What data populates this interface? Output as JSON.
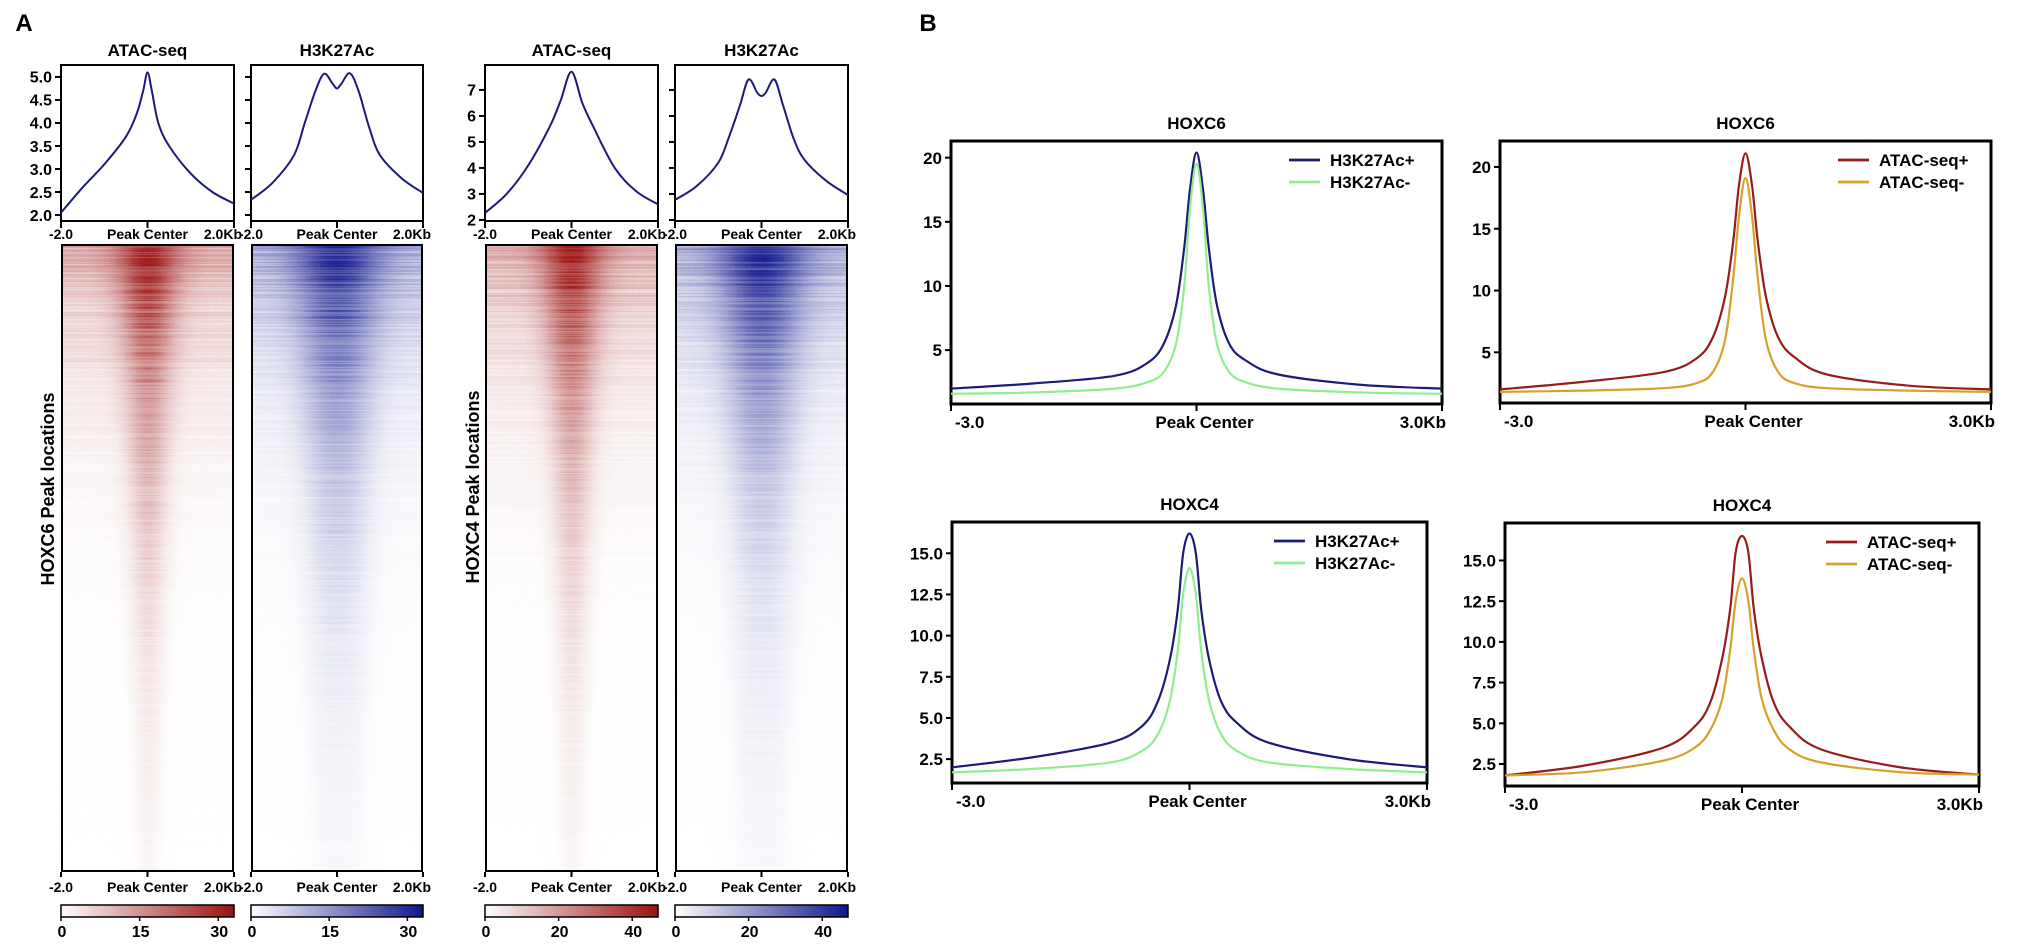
{
  "panel_labels": {
    "a": "A",
    "b": "B"
  },
  "row_labels": [
    "HOXC6 Peak locations",
    "HOXC4 Peak locations"
  ],
  "chart_data": [
    {
      "type": "line",
      "panel": "A",
      "title": "ATAC-seq",
      "x_tick_labels": [
        "-2.0",
        "Peak Center",
        "2.0Kb"
      ],
      "xlim": [
        -2,
        2
      ],
      "ylim": [
        1.87,
        5.26
      ],
      "yticks": [
        2.0,
        2.5,
        3.0,
        3.5,
        4.0,
        4.5,
        5.0
      ],
      "ytick_labels": [
        "2.0",
        "2.5",
        "3.0",
        "3.5",
        "4.0",
        "4.5",
        "5.0"
      ],
      "series": [
        {
          "color": "#1c1c78",
          "x": [
            -2,
            -1.5,
            -1,
            -0.5,
            -0.25,
            -0.1,
            0,
            0.1,
            0.25,
            0.5,
            1,
            1.5,
            2
          ],
          "y": [
            2.05,
            2.6,
            3.1,
            3.7,
            4.2,
            4.7,
            5.1,
            4.7,
            4.0,
            3.5,
            2.9,
            2.5,
            2.25
          ]
        }
      ]
    },
    {
      "type": "line",
      "panel": "A",
      "title": "H3K27Ac",
      "x_tick_labels": [
        "-2.0",
        "Peak Center",
        "2.0Kb"
      ],
      "xlim": [
        -2,
        2
      ],
      "ylim": [
        1.87,
        5.26
      ],
      "yticks": [
        2.0,
        2.5,
        3.0,
        3.5,
        4.0,
        4.5,
        5.0
      ],
      "ytick_labels": [],
      "series": [
        {
          "color": "#1c1c78",
          "x": [
            -2,
            -1.5,
            -1,
            -0.75,
            -0.5,
            -0.3,
            -0.1,
            0,
            0.1,
            0.3,
            0.5,
            0.75,
            1,
            1.5,
            2
          ],
          "y": [
            2.33,
            2.7,
            3.3,
            4.0,
            4.7,
            5.07,
            4.85,
            4.75,
            4.85,
            5.08,
            4.7,
            3.9,
            3.3,
            2.8,
            2.48
          ]
        }
      ]
    },
    {
      "type": "line",
      "panel": "A",
      "title": "ATAC-seq",
      "x_tick_labels": [
        "-2.0",
        "Peak Center",
        "2.0Kb"
      ],
      "xlim": [
        -2,
        2
      ],
      "ylim": [
        1.96,
        7.96
      ],
      "yticks": [
        2,
        3,
        4,
        5,
        6,
        7
      ],
      "ytick_labels": [
        "2",
        "3",
        "4",
        "5",
        "6",
        "7"
      ],
      "series": [
        {
          "color": "#1c1c78",
          "x": [
            -2,
            -1.5,
            -1,
            -0.5,
            -0.25,
            0,
            0.25,
            0.5,
            1,
            1.5,
            2
          ],
          "y": [
            2.27,
            3.0,
            4.1,
            5.6,
            6.6,
            7.7,
            6.5,
            5.6,
            4.0,
            3.1,
            2.6
          ]
        }
      ]
    },
    {
      "type": "line",
      "panel": "A",
      "title": "H3K27Ac",
      "x_tick_labels": [
        "-2.0",
        "Peak Center",
        "2.0Kb"
      ],
      "xlim": [
        -2,
        2
      ],
      "ylim": [
        1.96,
        7.96
      ],
      "yticks": [
        2,
        3,
        4,
        5,
        6,
        7
      ],
      "ytick_labels": [],
      "series": [
        {
          "color": "#1c1c78",
          "x": [
            -2,
            -1.5,
            -1,
            -0.75,
            -0.5,
            -0.3,
            -0.1,
            0,
            0.1,
            0.3,
            0.5,
            0.75,
            1,
            1.5,
            2
          ],
          "y": [
            2.77,
            3.3,
            4.2,
            5.2,
            6.4,
            7.4,
            6.9,
            6.77,
            6.9,
            7.4,
            6.4,
            5.1,
            4.3,
            3.5,
            2.96
          ]
        }
      ]
    },
    {
      "type": "heatmap",
      "panel": "A",
      "mark": "ATAC-seq",
      "x_tick_labels": [
        "-2.0",
        "Peak Center",
        "2.0Kb"
      ],
      "colormap": [
        "#ffffff",
        "#9b1010"
      ],
      "colorbar_range": [
        0,
        33
      ],
      "colorbar_ticks": [
        0,
        15,
        30
      ],
      "colorbar_tick_labels": [
        "0",
        "15",
        "30"
      ]
    },
    {
      "type": "heatmap",
      "panel": "A",
      "mark": "H3K27Ac",
      "x_tick_labels": [
        "-2.0",
        "Peak Center",
        "2.0Kb"
      ],
      "colormap": [
        "#ffffff",
        "#10168c"
      ],
      "colorbar_range": [
        0,
        33
      ],
      "colorbar_ticks": [
        0,
        15,
        30
      ],
      "colorbar_tick_labels": [
        "0",
        "15",
        "30"
      ]
    },
    {
      "type": "heatmap",
      "panel": "A",
      "mark": "ATAC-seq",
      "x_tick_labels": [
        "-2.0",
        "Peak Center",
        "2.0Kb"
      ],
      "colormap": [
        "#ffffff",
        "#9b1010"
      ],
      "colorbar_range": [
        0,
        47
      ],
      "colorbar_ticks": [
        0,
        20,
        40
      ],
      "colorbar_tick_labels": [
        "0",
        "20",
        "40"
      ]
    },
    {
      "type": "heatmap",
      "panel": "A",
      "mark": "H3K27Ac",
      "x_tick_labels": [
        "-2.0",
        "Peak Center",
        "2.0Kb"
      ],
      "colormap": [
        "#ffffff",
        "#10168c"
      ],
      "colorbar_range": [
        0,
        47
      ],
      "colorbar_ticks": [
        0,
        20,
        40
      ],
      "colorbar_tick_labels": [
        "0",
        "20",
        "40"
      ]
    },
    {
      "type": "line",
      "panel": "B",
      "title": "HOXC6",
      "x_tick_labels": [
        "-3.0",
        "Peak Center",
        "3.0Kb"
      ],
      "xlim": [
        -3,
        3
      ],
      "ylim": [
        0.8,
        21.3
      ],
      "yticks": [
        5,
        10,
        15,
        20
      ],
      "ytick_labels": [
        "5",
        "10",
        "15",
        "20"
      ],
      "legend": "top-right",
      "series": [
        {
          "name": "H3K27Ac+",
          "color": "#1c1c78",
          "x": [
            -3,
            -2,
            -1,
            -0.6,
            -0.4,
            -0.25,
            -0.15,
            -0.08,
            0,
            0.08,
            0.15,
            0.25,
            0.4,
            0.6,
            1,
            2,
            3
          ],
          "y": [
            2.0,
            2.4,
            3.0,
            4.0,
            5.5,
            8.5,
            13,
            17.5,
            20.4,
            17.5,
            13,
            8.5,
            5.5,
            4.2,
            3.1,
            2.3,
            2.0
          ]
        },
        {
          "name": "H3K27Ac-",
          "color": "#90ee90",
          "x": [
            -3,
            -2,
            -1,
            -0.6,
            -0.4,
            -0.25,
            -0.15,
            -0.08,
            0,
            0.08,
            0.15,
            0.25,
            0.4,
            0.6,
            1,
            2,
            3
          ],
          "y": [
            1.6,
            1.7,
            2.0,
            2.5,
            3.3,
            5.5,
            10,
            16,
            19.5,
            16,
            10,
            5.5,
            3.3,
            2.5,
            2.0,
            1.7,
            1.6
          ]
        }
      ]
    },
    {
      "type": "line",
      "panel": "B",
      "title": "HOXC6",
      "x_tick_labels": [
        "-3.0",
        "Peak Center",
        "3.0Kb"
      ],
      "xlim": [
        -3,
        3
      ],
      "ylim": [
        0.9,
        22.1
      ],
      "yticks": [
        5,
        10,
        15,
        20
      ],
      "ytick_labels": [
        "5",
        "10",
        "15",
        "20"
      ],
      "legend": "top-right",
      "series": [
        {
          "name": "ATAC-seq+",
          "color": "#961c1c",
          "x": [
            -3,
            -2,
            -1,
            -0.6,
            -0.4,
            -0.25,
            -0.15,
            -0.08,
            0,
            0.08,
            0.15,
            0.25,
            0.4,
            0.6,
            1,
            2,
            3
          ],
          "y": [
            2.0,
            2.6,
            3.4,
            4.5,
            6.2,
            9.5,
            14,
            18.5,
            21.1,
            18.5,
            14,
            9.5,
            6.2,
            4.6,
            3.2,
            2.3,
            2.0
          ]
        },
        {
          "name": "ATAC-seq-",
          "color": "#d4a22c",
          "x": [
            -3,
            -2,
            -1,
            -0.6,
            -0.4,
            -0.25,
            -0.15,
            -0.08,
            0,
            0.08,
            0.15,
            0.25,
            0.4,
            0.6,
            1,
            2,
            3
          ],
          "y": [
            1.8,
            1.9,
            2.1,
            2.5,
            3.4,
            6,
            11,
            16,
            19.1,
            16,
            11,
            6,
            3.4,
            2.5,
            2.1,
            1.9,
            1.8
          ]
        }
      ]
    },
    {
      "type": "line",
      "panel": "B",
      "title": "HOXC4",
      "x_tick_labels": [
        "-3.0",
        "Peak Center",
        "3.0Kb"
      ],
      "xlim": [
        -3,
        3
      ],
      "ylim": [
        1.05,
        16.9
      ],
      "yticks": [
        2.5,
        5,
        7.5,
        10,
        12.5,
        15
      ],
      "ytick_labels": [
        "2.5",
        "5.0",
        "7.5",
        "10.0",
        "12.5",
        "15.0"
      ],
      "legend": "top-right",
      "series": [
        {
          "name": "H3K27Ac+",
          "color": "#1c1c78",
          "x": [
            -3,
            -2,
            -1,
            -0.6,
            -0.4,
            -0.25,
            -0.15,
            -0.08,
            0,
            0.08,
            0.15,
            0.25,
            0.4,
            0.6,
            1,
            2,
            3
          ],
          "y": [
            2.0,
            2.6,
            3.5,
            4.5,
            6.0,
            8.5,
            11.5,
            15,
            16.2,
            15,
            11.5,
            8.5,
            6.0,
            4.7,
            3.5,
            2.5,
            2.0
          ]
        },
        {
          "name": "H3K27Ac-",
          "color": "#90ee90",
          "x": [
            -3,
            -2,
            -1,
            -0.6,
            -0.4,
            -0.25,
            -0.15,
            -0.08,
            0,
            0.08,
            0.15,
            0.25,
            0.4,
            0.6,
            1,
            2,
            3
          ],
          "y": [
            1.7,
            1.9,
            2.3,
            3.0,
            4.0,
            6.0,
            9,
            12.5,
            14.1,
            12.5,
            9,
            6.0,
            4.0,
            3.0,
            2.3,
            1.9,
            1.7
          ]
        }
      ]
    },
    {
      "type": "line",
      "panel": "B",
      "title": "HOXC4",
      "x_tick_labels": [
        "-3.0",
        "Peak Center",
        "3.0Kb"
      ],
      "xlim": [
        -3,
        3
      ],
      "ylim": [
        1.15,
        17.3
      ],
      "yticks": [
        2.5,
        5,
        7.5,
        10,
        12.5,
        15
      ],
      "ytick_labels": [
        "2.5",
        "5.0",
        "7.5",
        "10.0",
        "12.5",
        "15.0"
      ],
      "legend": "top-right",
      "series": [
        {
          "name": "ATAC-seq+",
          "color": "#961c1c",
          "x": [
            -3,
            -2,
            -1,
            -0.6,
            -0.4,
            -0.25,
            -0.15,
            -0.08,
            0,
            0.08,
            0.15,
            0.25,
            0.4,
            0.6,
            1,
            2,
            3
          ],
          "y": [
            1.8,
            2.4,
            3.5,
            4.8,
            6.3,
            9,
            12,
            15.5,
            16.5,
            15.5,
            12,
            9,
            6.3,
            4.8,
            3.4,
            2.3,
            1.85
          ]
        },
        {
          "name": "ATAC-seq-",
          "color": "#d4a22c",
          "x": [
            -3,
            -2,
            -1,
            -0.6,
            -0.4,
            -0.25,
            -0.15,
            -0.08,
            0,
            0.08,
            0.15,
            0.25,
            0.4,
            0.6,
            1,
            2,
            3
          ],
          "y": [
            1.8,
            2.0,
            2.7,
            3.5,
            4.6,
            6.5,
            9.5,
            12.5,
            13.9,
            12.5,
            9.5,
            6.5,
            4.6,
            3.4,
            2.6,
            2.0,
            1.85
          ]
        }
      ]
    }
  ]
}
